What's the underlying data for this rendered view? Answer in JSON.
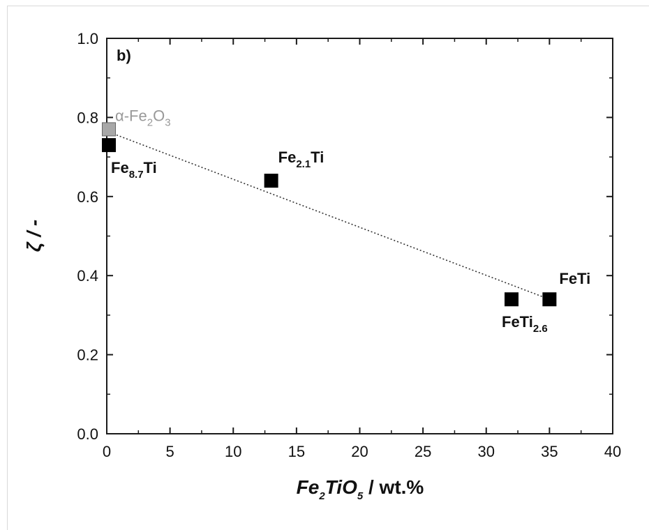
{
  "chart_data": {
    "type": "scatter",
    "panel_label": "b)",
    "xlabel": {
      "main": "Fe",
      "s1": "2",
      "mid": "TiO",
      "s2": "5",
      "unit": " / wt.%"
    },
    "ylabel": "ζ / -",
    "xlim": [
      0,
      40
    ],
    "ylim": [
      0,
      1.0
    ],
    "xticks": [
      0,
      5,
      10,
      15,
      20,
      25,
      30,
      35,
      40
    ],
    "yticks": [
      0.0,
      0.2,
      0.4,
      0.6,
      0.8,
      1.0
    ],
    "xtick_labels": [
      "0",
      "5",
      "10",
      "15",
      "20",
      "25",
      "30",
      "35",
      "40"
    ],
    "ytick_labels": [
      "0.0",
      "0.2",
      "0.4",
      "0.6",
      "0.8",
      "1.0"
    ],
    "grid": false,
    "points": [
      {
        "x": 0,
        "y": 0.77,
        "color": "#a8a8a8",
        "label_main": "α-Fe",
        "label_sub": "2",
        "label_main2": "O",
        "label_sub2": "3"
      },
      {
        "x": 0,
        "y": 0.73,
        "color": "#000000",
        "label_main": "Fe",
        "label_sub": "8.7",
        "label_main2": "Ti",
        "label_sub2": ""
      },
      {
        "x": 13,
        "y": 0.64,
        "color": "#000000",
        "label_main": "Fe",
        "label_sub": "2.1",
        "label_main2": "Ti",
        "label_sub2": ""
      },
      {
        "x": 32,
        "y": 0.34,
        "color": "#000000",
        "label_main": "FeTi",
        "label_sub": "2.6",
        "label_main2": "",
        "label_sub2": ""
      },
      {
        "x": 35,
        "y": 0.34,
        "color": "#000000",
        "label_main": "FeTi",
        "label_sub": "",
        "label_main2": "",
        "label_sub2": ""
      }
    ],
    "trend_line": {
      "x": [
        0,
        35
      ],
      "y": [
        0.765,
        0.34
      ],
      "style": "dotted"
    }
  }
}
